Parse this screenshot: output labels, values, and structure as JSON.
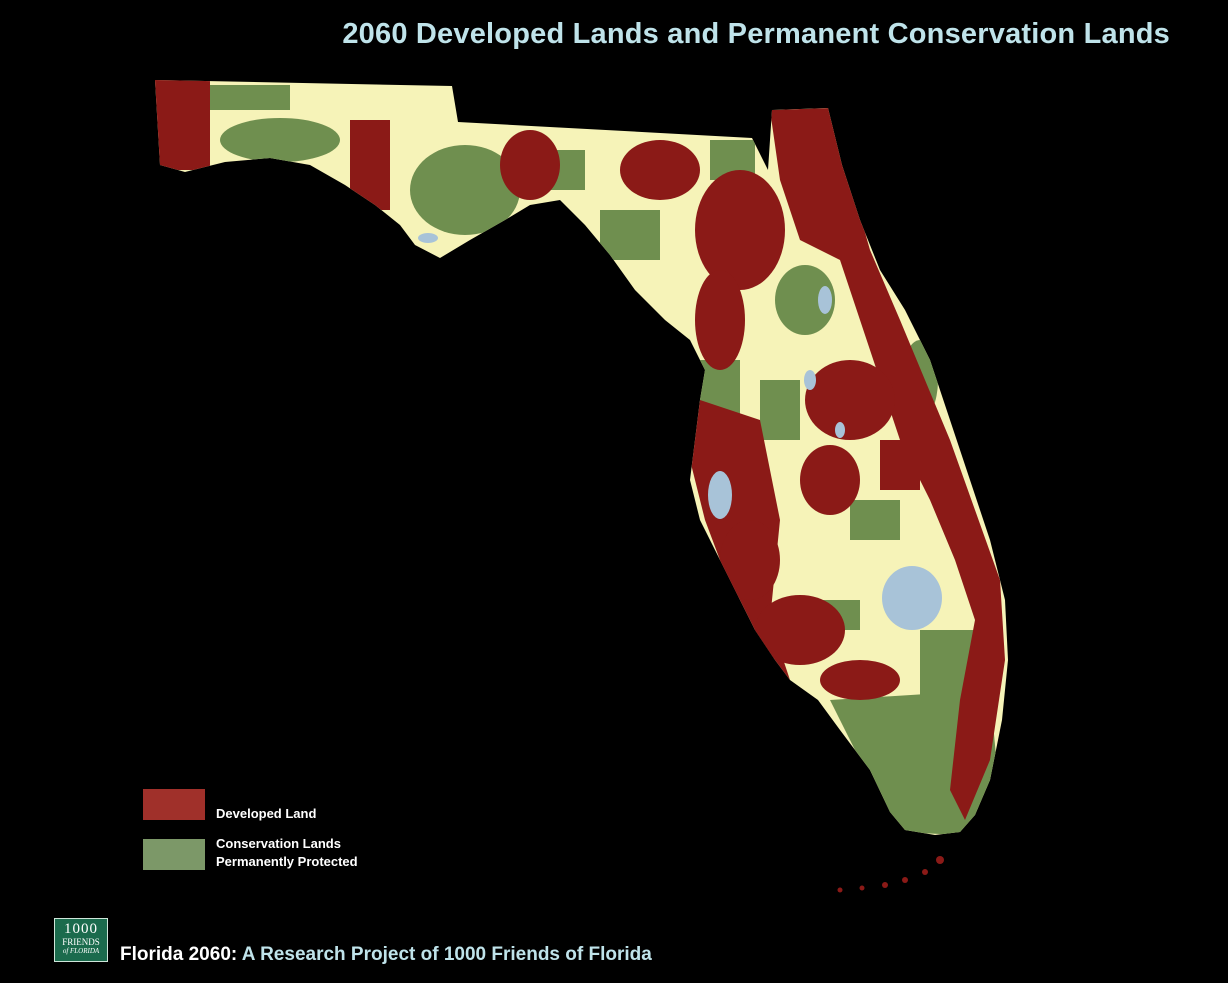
{
  "title": "2060 Developed Lands and Permanent Conservation Lands",
  "legend": [
    {
      "label": "Developed Land",
      "color": "#a0302a"
    },
    {
      "label_line1": "Conservation Lands",
      "label_line2": "Permanently Protected",
      "color": "#7c9868"
    }
  ],
  "colors": {
    "background": "#000000",
    "undeveloped": "#f6f3b8",
    "developed": "#8b1a17",
    "conservation": "#6f8f4f",
    "water": "#a8c3d8"
  },
  "logo": {
    "line1": "1000",
    "line2": "FRIENDS",
    "line3": "of FLORIDA"
  },
  "footer": {
    "part1": "Florida 2060:",
    "part2": " A Research Project of 1000 Friends of Florida"
  }
}
